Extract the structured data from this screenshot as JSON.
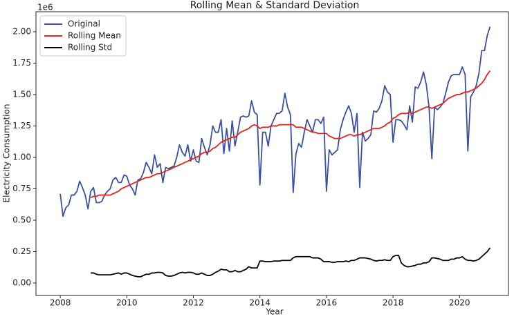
{
  "chart_data": {
    "type": "line",
    "title": "Rolling Mean & Standard Deviation",
    "xlabel": "Year",
    "ylabel": "Electricity Consumption",
    "y_offset_label": "1e6",
    "x": [
      2008.0,
      2008.083,
      2008.167,
      2008.25,
      2008.333,
      2008.417,
      2008.5,
      2008.583,
      2008.667,
      2008.75,
      2008.833,
      2008.917,
      2009.0,
      2009.083,
      2009.167,
      2009.25,
      2009.333,
      2009.417,
      2009.5,
      2009.583,
      2009.667,
      2009.75,
      2009.833,
      2009.917,
      2010.0,
      2010.083,
      2010.167,
      2010.25,
      2010.333,
      2010.417,
      2010.5,
      2010.583,
      2010.667,
      2010.75,
      2010.833,
      2010.917,
      2011.0,
      2011.083,
      2011.167,
      2011.25,
      2011.333,
      2011.417,
      2011.5,
      2011.583,
      2011.667,
      2011.75,
      2011.833,
      2011.917,
      2012.0,
      2012.083,
      2012.167,
      2012.25,
      2012.333,
      2012.417,
      2012.5,
      2012.583,
      2012.667,
      2012.75,
      2012.833,
      2012.917,
      2013.0,
      2013.083,
      2013.167,
      2013.25,
      2013.333,
      2013.417,
      2013.5,
      2013.583,
      2013.667,
      2013.75,
      2013.833,
      2013.917,
      2014.0,
      2014.083,
      2014.167,
      2014.25,
      2014.333,
      2014.417,
      2014.5,
      2014.583,
      2014.667,
      2014.75,
      2014.833,
      2014.917,
      2015.0,
      2015.083,
      2015.167,
      2015.25,
      2015.333,
      2015.417,
      2015.5,
      2015.583,
      2015.667,
      2015.75,
      2015.833,
      2015.917,
      2016.0,
      2016.083,
      2016.167,
      2016.25,
      2016.333,
      2016.417,
      2016.5,
      2016.583,
      2016.667,
      2016.75,
      2016.833,
      2016.917,
      2017.0,
      2017.083,
      2017.167,
      2017.25,
      2017.333,
      2017.417,
      2017.5,
      2017.583,
      2017.667,
      2017.75,
      2017.833,
      2017.917,
      2018.0,
      2018.083,
      2018.167,
      2018.25,
      2018.333,
      2018.417,
      2018.5,
      2018.583,
      2018.667,
      2018.75,
      2018.833,
      2018.917,
      2019.0,
      2019.083,
      2019.167,
      2019.25,
      2019.333,
      2019.417,
      2019.5,
      2019.583,
      2019.667,
      2019.75,
      2019.833,
      2019.917,
      2020.0,
      2020.083,
      2020.167,
      2020.25,
      2020.333,
      2020.417,
      2020.5,
      2020.583,
      2020.667,
      2020.75,
      2020.833,
      2020.917
    ],
    "series": [
      {
        "name": "Original",
        "color": "#3a4fa3",
        "values": [
          0.71,
          0.53,
          0.6,
          0.62,
          0.7,
          0.7,
          0.73,
          0.81,
          0.76,
          0.7,
          0.59,
          0.73,
          0.76,
          0.64,
          0.64,
          0.65,
          0.7,
          0.73,
          0.75,
          0.82,
          0.84,
          0.8,
          0.8,
          0.86,
          0.85,
          0.78,
          0.75,
          0.7,
          0.82,
          0.83,
          0.88,
          0.96,
          0.92,
          0.87,
          1.02,
          0.92,
          0.95,
          0.8,
          0.92,
          0.91,
          0.92,
          0.93,
          1.0,
          1.1,
          1.04,
          1.01,
          1.1,
          0.97,
          1.06,
          0.97,
          0.96,
          1.15,
          1.08,
          1.02,
          1.1,
          1.25,
          1.2,
          1.2,
          1.3,
          1.03,
          1.23,
          1.05,
          1.29,
          1.09,
          1.2,
          1.32,
          1.33,
          1.32,
          1.33,
          1.45,
          1.36,
          1.34,
          0.78,
          1.2,
          1.2,
          1.09,
          1.25,
          1.3,
          1.35,
          1.35,
          1.37,
          1.51,
          1.4,
          1.34,
          0.72,
          1.03,
          1.11,
          1.08,
          1.2,
          1.3,
          1.25,
          1.2,
          1.3,
          1.3,
          1.27,
          1.32,
          0.73,
          1.06,
          1.02,
          1.04,
          1.06,
          1.22,
          1.3,
          1.36,
          1.41,
          1.35,
          1.2,
          1.35,
          0.76,
          1.2,
          1.13,
          1.15,
          1.18,
          1.37,
          1.36,
          1.39,
          1.45,
          1.57,
          1.52,
          1.5,
          1.12,
          1.3,
          1.3,
          1.29,
          1.26,
          1.22,
          1.41,
          1.28,
          1.56,
          1.55,
          1.6,
          1.68,
          1.58,
          1.4,
          0.99,
          1.4,
          1.38,
          1.4,
          1.43,
          1.51,
          1.6,
          1.65,
          1.66,
          1.66,
          1.66,
          1.72,
          1.66,
          1.05,
          1.48,
          1.52,
          1.57,
          1.67,
          1.85,
          1.85,
          1.97,
          2.04
        ]
      },
      {
        "name": "Rolling Mean",
        "color": "#e3221c",
        "values": [
          null,
          null,
          null,
          null,
          null,
          null,
          null,
          null,
          null,
          null,
          null,
          0.68,
          0.69,
          0.69,
          0.7,
          0.7,
          0.7,
          0.7,
          0.7,
          0.71,
          0.72,
          0.73,
          0.75,
          0.76,
          0.77,
          0.78,
          0.79,
          0.8,
          0.81,
          0.82,
          0.83,
          0.84,
          0.84,
          0.85,
          0.86,
          0.87,
          0.87,
          0.88,
          0.89,
          0.9,
          0.91,
          0.92,
          0.93,
          0.94,
          0.95,
          0.96,
          0.97,
          0.98,
          0.99,
          1.0,
          1.01,
          1.03,
          1.04,
          1.04,
          1.05,
          1.07,
          1.08,
          1.1,
          1.12,
          1.13,
          1.14,
          1.15,
          1.16,
          1.16,
          1.18,
          1.2,
          1.21,
          1.22,
          1.23,
          1.25,
          1.26,
          1.25,
          1.23,
          1.24,
          1.24,
          1.24,
          1.25,
          1.25,
          1.25,
          1.26,
          1.26,
          1.26,
          1.26,
          1.26,
          1.26,
          1.24,
          1.24,
          1.24,
          1.23,
          1.22,
          1.21,
          1.2,
          1.2,
          1.19,
          1.19,
          1.19,
          1.19,
          1.17,
          1.16,
          1.15,
          1.15,
          1.15,
          1.16,
          1.17,
          1.18,
          1.18,
          1.17,
          1.18,
          1.18,
          1.19,
          1.2,
          1.21,
          1.22,
          1.23,
          1.23,
          1.23,
          1.24,
          1.25,
          1.27,
          1.28,
          1.31,
          1.32,
          1.34,
          1.35,
          1.35,
          1.35,
          1.36,
          1.35,
          1.36,
          1.37,
          1.38,
          1.39,
          1.4,
          1.4,
          1.39,
          1.4,
          1.41,
          1.42,
          1.43,
          1.45,
          1.47,
          1.48,
          1.49,
          1.5,
          1.5,
          1.51,
          1.52,
          1.52,
          1.53,
          1.54,
          1.55,
          1.57,
          1.59,
          1.62,
          1.66,
          1.69
        ]
      },
      {
        "name": "Rolling Std",
        "color": "#000000",
        "values": [
          null,
          null,
          null,
          null,
          null,
          null,
          null,
          null,
          null,
          null,
          null,
          0.08,
          0.08,
          0.07,
          0.065,
          0.065,
          0.065,
          0.065,
          0.065,
          0.07,
          0.075,
          0.08,
          0.07,
          0.08,
          0.08,
          0.07,
          0.06,
          0.055,
          0.05,
          0.05,
          0.06,
          0.07,
          0.07,
          0.08,
          0.08,
          0.085,
          0.085,
          0.08,
          0.06,
          0.055,
          0.055,
          0.06,
          0.07,
          0.08,
          0.085,
          0.08,
          0.085,
          0.085,
          0.08,
          0.07,
          0.07,
          0.08,
          0.07,
          0.06,
          0.06,
          0.07,
          0.085,
          0.095,
          0.11,
          0.105,
          0.105,
          0.09,
          0.09,
          0.1,
          0.09,
          0.09,
          0.1,
          0.11,
          0.13,
          0.12,
          0.12,
          0.12,
          0.175,
          0.175,
          0.17,
          0.17,
          0.17,
          0.175,
          0.175,
          0.175,
          0.18,
          0.18,
          0.18,
          0.18,
          0.2,
          0.21,
          0.21,
          0.21,
          0.21,
          0.21,
          0.21,
          0.2,
          0.2,
          0.2,
          0.19,
          0.17,
          0.17,
          0.17,
          0.165,
          0.165,
          0.17,
          0.17,
          0.17,
          0.175,
          0.17,
          0.18,
          0.18,
          0.19,
          0.2,
          0.2,
          0.2,
          0.195,
          0.19,
          0.18,
          0.175,
          0.18,
          0.18,
          0.185,
          0.18,
          0.18,
          0.21,
          0.22,
          0.22,
          0.16,
          0.14,
          0.13,
          0.13,
          0.135,
          0.14,
          0.15,
          0.15,
          0.16,
          0.16,
          0.17,
          0.2,
          0.2,
          0.195,
          0.19,
          0.18,
          0.18,
          0.18,
          0.19,
          0.19,
          0.2,
          0.2,
          0.21,
          0.19,
          0.18,
          0.18,
          0.175,
          0.18,
          0.19,
          0.21,
          0.23,
          0.25,
          0.28
        ]
      }
    ],
    "xlim": [
      2007.27,
      2021.47
    ],
    "xticks": [
      2008,
      2010,
      2012,
      2014,
      2016,
      2018,
      2020
    ],
    "ylim": [
      -0.099,
      2.159
    ],
    "yticks": [
      {
        "value": 0,
        "label": "0.00"
      },
      {
        "value": 0.25,
        "label": "0.25"
      },
      {
        "value": 0.5,
        "label": "0.50"
      },
      {
        "value": 0.75,
        "label": "0.75"
      },
      {
        "value": 1.0,
        "label": "1.00"
      },
      {
        "value": 1.25,
        "label": "1.25"
      },
      {
        "value": 1.5,
        "label": "1.50"
      },
      {
        "value": 1.75,
        "label": "1.75"
      },
      {
        "value": 2.0,
        "label": "2.00"
      }
    ],
    "legend": "upper left",
    "grid": false
  }
}
